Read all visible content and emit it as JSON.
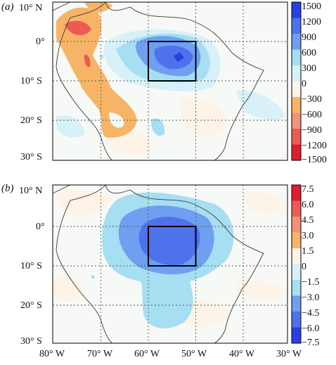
{
  "panels": [
    {
      "label": "(a)",
      "lat_labels": [
        "10° N",
        "0°",
        "10° S",
        "20° S",
        "30° S"
      ],
      "colorbar_ticks": [
        "1500",
        "1200",
        "900",
        "600",
        "300",
        "0",
        "−300",
        "−600",
        "−900",
        "−1200",
        "−1500"
      ]
    },
    {
      "label": "(b)",
      "lat_labels": [
        "10° N",
        "0°",
        "10° S",
        "20° S",
        "30° S"
      ],
      "colorbar_ticks": [
        "7.5",
        "6.0",
        "4.5",
        "3.0",
        "1.5",
        "0",
        "−1.5",
        "−3.0",
        "−4.5",
        "−6.0",
        "−7.5"
      ]
    }
  ],
  "lon_labels": [
    "80° W",
    "70° W",
    "60° W",
    "50° W",
    "40° W",
    "30° W"
  ],
  "colors": {
    "neg_strong": "#dc1e2e",
    "neg_3": "#ee5a52",
    "neg_2": "#f4917a",
    "neg_1": "#f7b467",
    "neutral": "#f6f9f6",
    "pos_1": "#a6def2",
    "pos_2": "#6e9ff0",
    "pos_3": "#4d72eb",
    "pos_strong": "#2a3fe4",
    "pos_soft": "#d8f0f8",
    "neg_soft": "#fdf3e6",
    "coast": "#3a3a3a",
    "box": "#000000"
  },
  "colorbar_a": [
    "#2a3fe4",
    "#4d72eb",
    "#6e9ff0",
    "#a6def2",
    "#d8f0f8",
    "#fdf3e6",
    "#f7b467",
    "#f4917a",
    "#ee5a52",
    "#dc1e2e"
  ],
  "colorbar_b": [
    "#dc1e2e",
    "#ee5a52",
    "#f4917a",
    "#f7b467",
    "#fdf3e6",
    "#d8f0f8",
    "#a6def2",
    "#6e9ff0",
    "#4d72eb",
    "#2a3fe4"
  ]
}
